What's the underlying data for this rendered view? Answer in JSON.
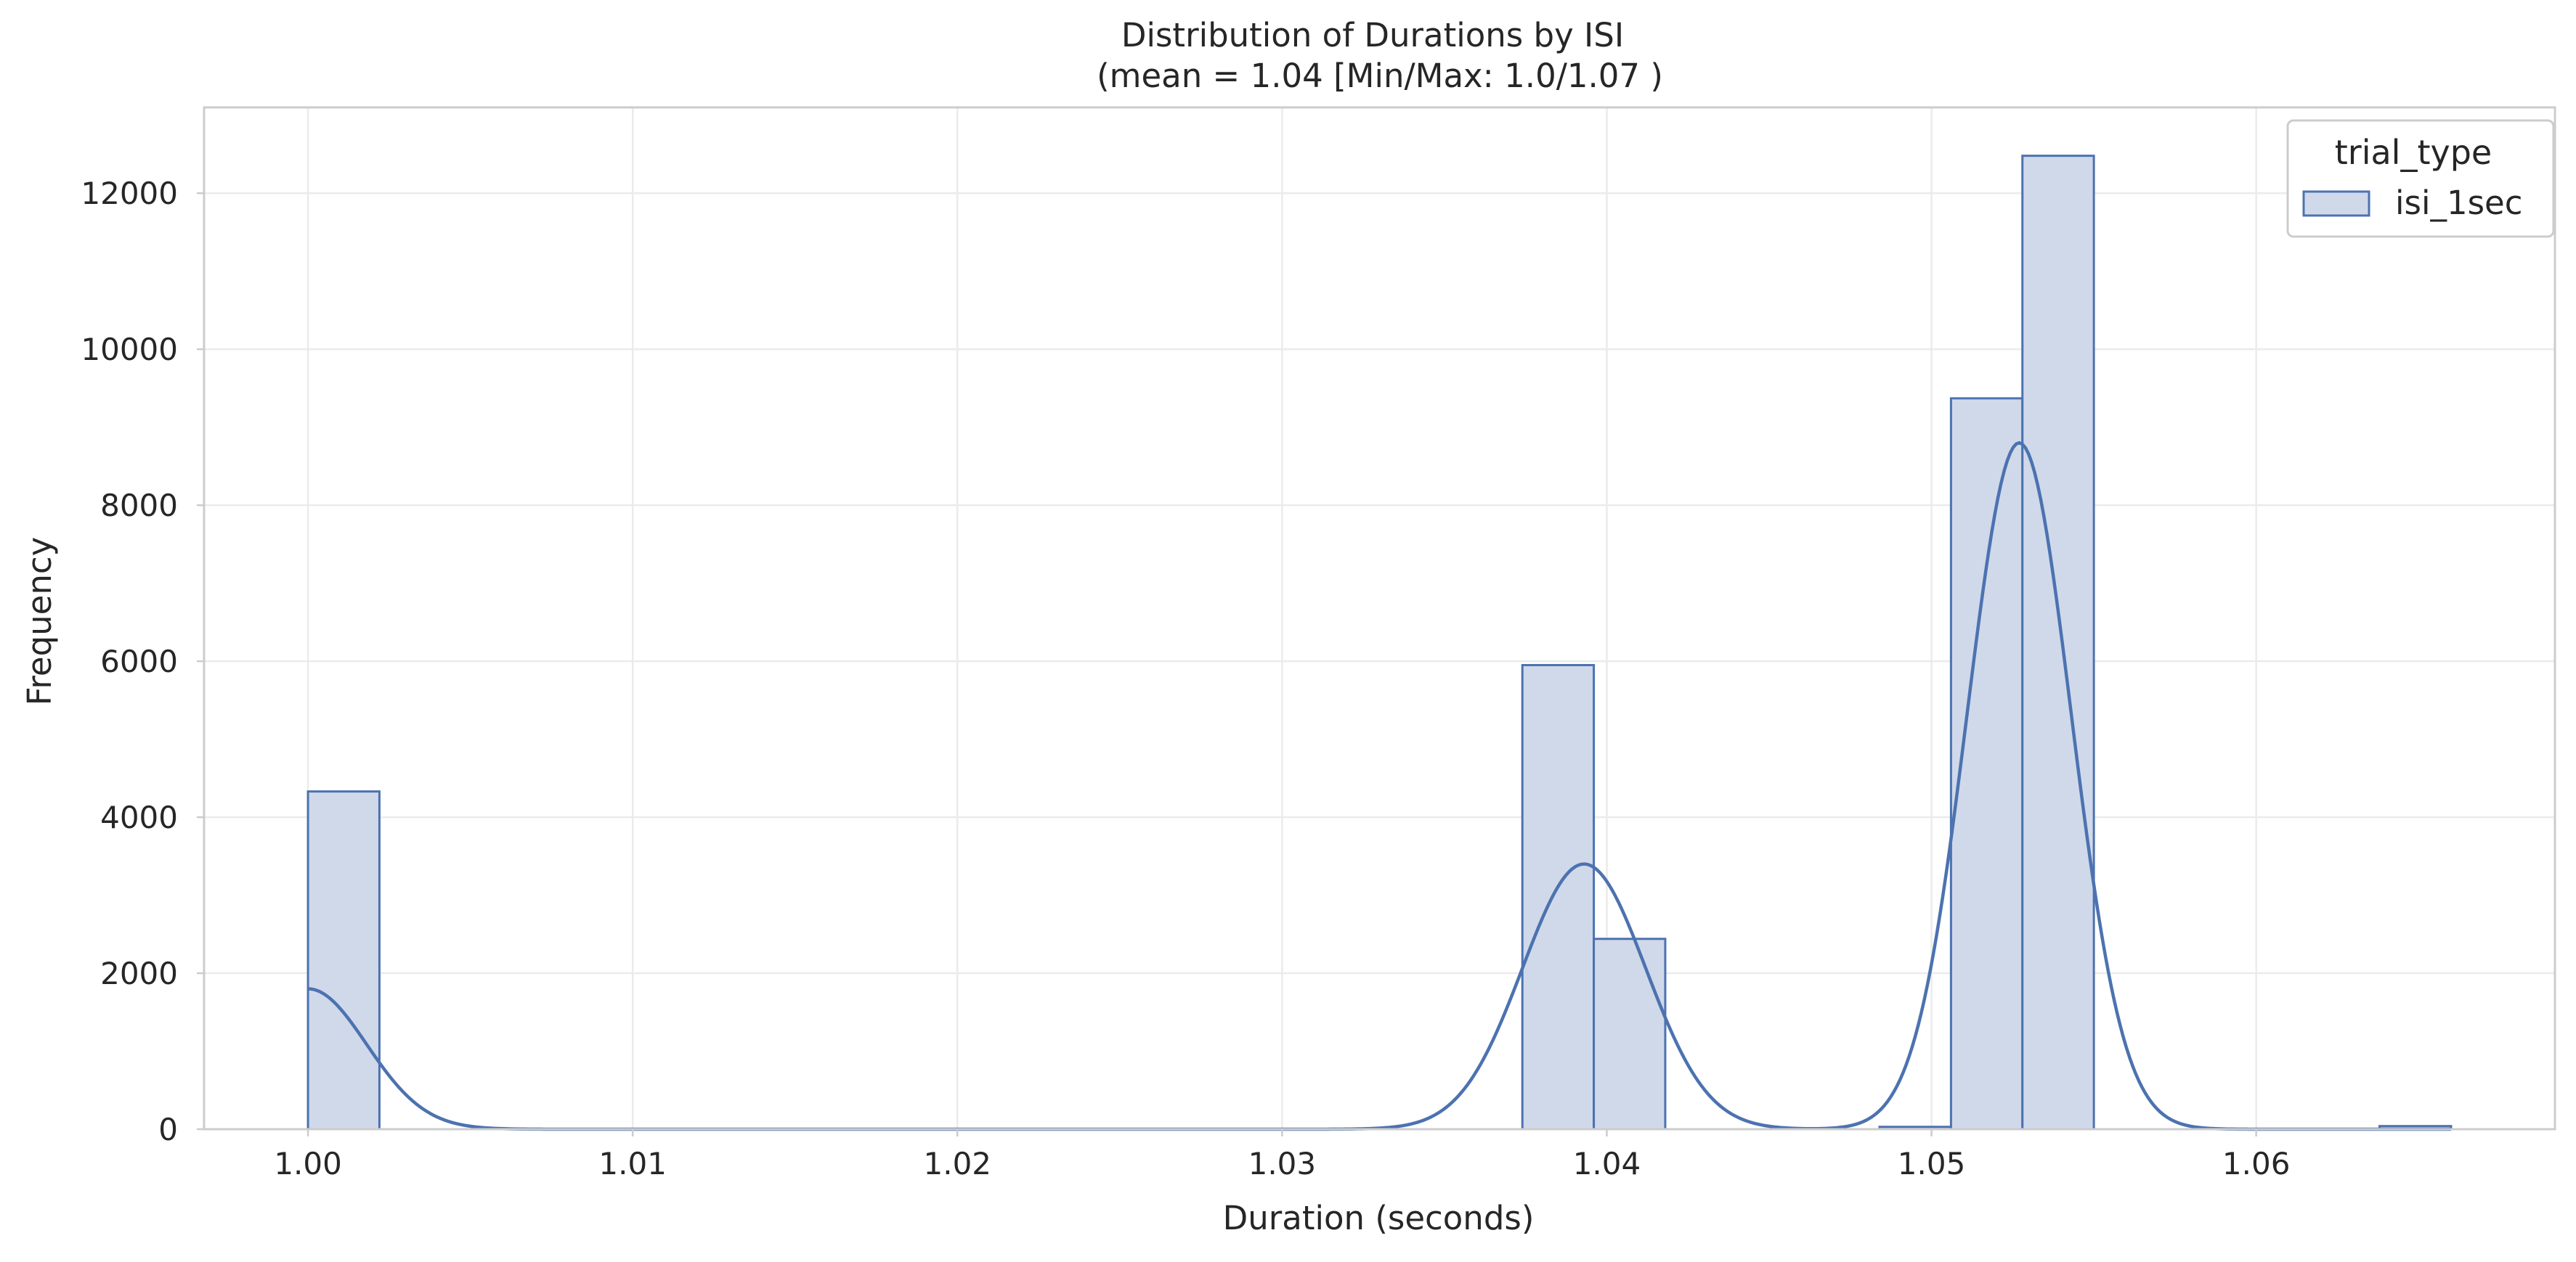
{
  "chart_data": {
    "type": "bar",
    "subtype": "histogram-step-with-kde",
    "title": "Distribution of Durations by ISI",
    "subtitle": "(mean = 1.04 [Min/Max: 1.0/1.07 )",
    "xlabel": "Duration (seconds)",
    "ylabel": "Frequency",
    "xlim": [
      0.9968,
      1.0692
    ],
    "ylim": [
      0,
      13100
    ],
    "x_ticks": [
      1.0,
      1.01,
      1.02,
      1.03,
      1.04,
      1.05,
      1.06
    ],
    "x_tick_labels": [
      "1.00",
      "1.01",
      "1.02",
      "1.03",
      "1.04",
      "1.05",
      "1.06"
    ],
    "y_ticks": [
      0,
      2000,
      4000,
      6000,
      8000,
      10000,
      12000
    ],
    "y_tick_labels": [
      "0",
      "2000",
      "4000",
      "6000",
      "8000",
      "10000",
      "12000"
    ],
    "grid": true,
    "legend": {
      "title": "trial_type",
      "position": "top-right"
    },
    "series": [
      {
        "name": "isi_1sec",
        "color": "#4c72b0",
        "fill": "#d0d9ea",
        "bins": [
          {
            "x0": 1.0,
            "x1": 1.0022,
            "count": 4330
          },
          {
            "x0": 1.0374,
            "x1": 1.0396,
            "count": 5950
          },
          {
            "x0": 1.0396,
            "x1": 1.0418,
            "count": 2440
          },
          {
            "x0": 1.0484,
            "x1": 1.0506,
            "count": 30
          },
          {
            "x0": 1.0506,
            "x1": 1.0528,
            "count": 9370
          },
          {
            "x0": 1.0528,
            "x1": 1.055,
            "count": 12480
          },
          {
            "x0": 1.0638,
            "x1": 1.066,
            "count": 40
          }
        ],
        "kde": {
          "x_range": [
            1.0,
            1.066
          ],
          "components": [
            {
              "mu": 1.0,
              "sigma": 0.0018,
              "peak": 1800
            },
            {
              "mu": 1.0393,
              "sigma": 0.0019,
              "peak": 3400
            },
            {
              "mu": 1.0527,
              "sigma": 0.0016,
              "peak": 8800
            }
          ]
        }
      }
    ]
  }
}
